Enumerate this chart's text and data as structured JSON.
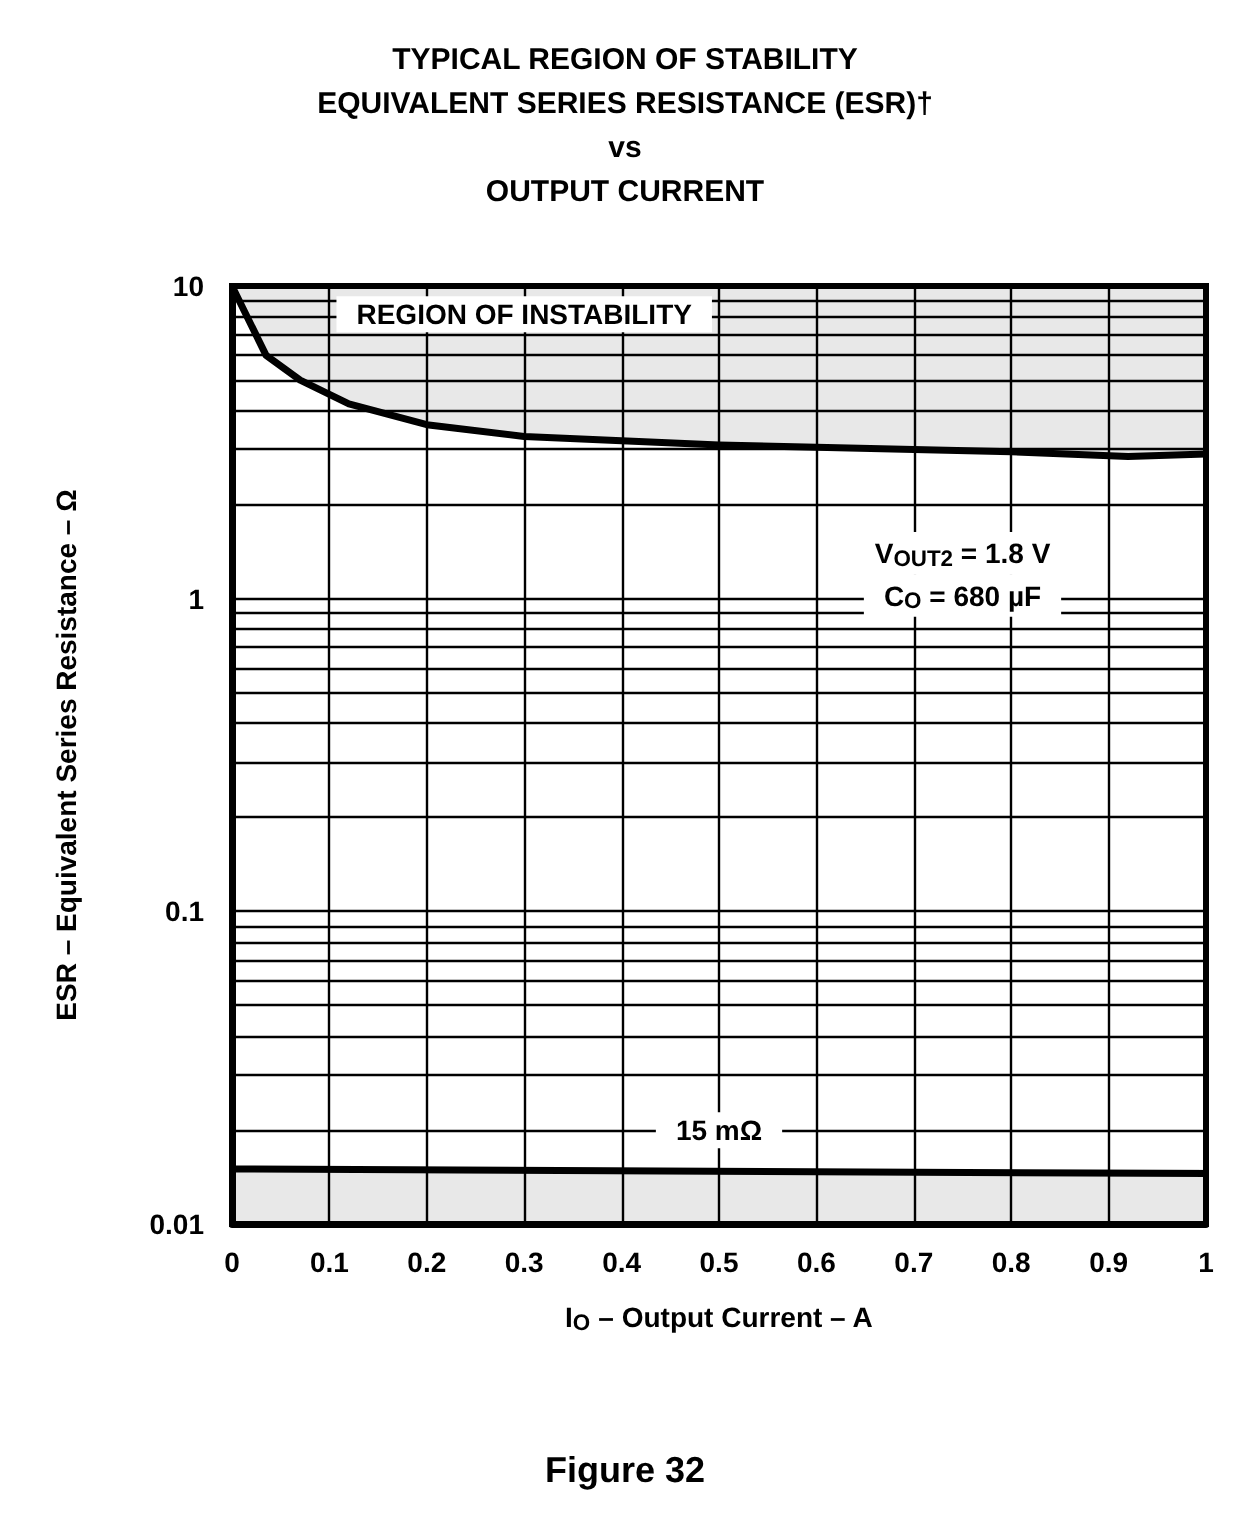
{
  "chart_data": {
    "type": "line",
    "title": "TYPICAL REGION OF STABILITY\nEQUIVALENT SERIES RESISTANCE (ESR)†\nvs\nOUTPUT CURRENT",
    "xlabel": "I$_{O}$ – Output Current – A",
    "ylabel": "ESR – Equivalent Series Resistance – Ω",
    "series": [
      {
        "color": "#000000",
        "x": [
          0,
          0.035,
          0.07,
          0.12,
          0.2,
          0.3,
          0.4,
          0.5,
          0.6,
          0.7,
          0.8,
          0.92,
          1
        ],
        "values": [
          10,
          6,
          5,
          4.2,
          3.6,
          3.3,
          3.2,
          3.1,
          3.05,
          3.0,
          2.95,
          2.85,
          2.9
        ],
        "lower": [
          10,
          6,
          5,
          4.2,
          3.6,
          3.3,
          3.2,
          3.1,
          3.05,
          3.0,
          2.95,
          2.85,
          2.9
        ],
        "upper": [
          10,
          10,
          10,
          10,
          10,
          10,
          10,
          10,
          10,
          10,
          10,
          10,
          10
        ]
      },
      {
        "color": "#000000",
        "x": [
          0,
          1
        ],
        "values": [
          0.015,
          0.0145
        ]
      }
    ],
    "bands": [
      {
        "axis": "y",
        "from": 0.01,
        "to": 0.015,
        "color": "#e8e8e8"
      }
    ],
    "xlim": [
      0,
      1
    ],
    "xticks": [
      0,
      0.1,
      0.2,
      0.3,
      0.4,
      0.5,
      0.6,
      0.7,
      0.8,
      0.9,
      1
    ],
    "ylim": [
      0.01,
      10
    ],
    "yticks": [
      0.01,
      {
        "value": 0.02,
        "label": null
      },
      {
        "value": 0.03,
        "label": null
      },
      {
        "value": 0.04,
        "label": null
      },
      {
        "value": 0.05,
        "label": null
      },
      {
        "value": 0.06,
        "label": null
      },
      {
        "value": 0.07,
        "label": null
      },
      {
        "value": 0.08,
        "label": null
      },
      {
        "value": 0.09,
        "label": null
      },
      0.1,
      {
        "value": 0.2,
        "label": null
      },
      {
        "value": 0.3,
        "label": null
      },
      {
        "value": 0.4,
        "label": null
      },
      {
        "value": 0.5,
        "label": null
      },
      {
        "value": 0.6,
        "label": null
      },
      {
        "value": 0.7,
        "label": null
      },
      {
        "value": 0.8,
        "label": null
      },
      {
        "value": 0.9,
        "label": null
      },
      1,
      {
        "value": 2,
        "label": null
      },
      {
        "value": 3,
        "label": null
      },
      {
        "value": 4,
        "label": null
      },
      {
        "value": 5,
        "label": null
      },
      {
        "value": 6,
        "label": null
      },
      {
        "value": 7,
        "label": null
      },
      {
        "value": 8,
        "label": null
      },
      {
        "value": 9,
        "label": null
      },
      10
    ],
    "log": "y",
    "grid": true,
    "annotations": [
      "REGION OF INSTABILITY",
      "V$_{OUT2}$ = 1.8 V",
      "C$_{O}$ = 680 µF",
      "15 mΩ",
      "Figure 32"
    ]
  }
}
